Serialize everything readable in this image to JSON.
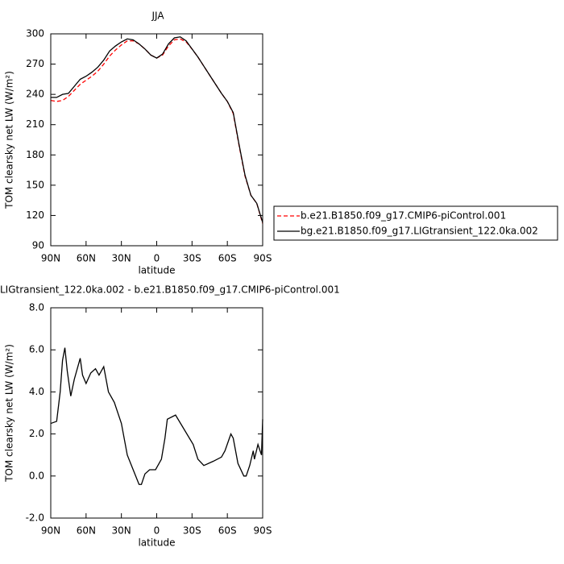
{
  "chart_data": [
    {
      "type": "line",
      "title": "JJA",
      "xlabel": "latitude",
      "ylabel": "TOM clearsky net LW (W/m²)",
      "x": [
        90,
        85,
        80,
        75,
        70,
        65,
        60,
        55,
        50,
        45,
        40,
        35,
        30,
        25,
        20,
        15,
        10,
        5,
        0,
        -5,
        -10,
        -15,
        -20,
        -25,
        -30,
        -35,
        -40,
        -45,
        -50,
        -55,
        -60,
        -65,
        -70,
        -75,
        -80,
        -85,
        -90
      ],
      "series": [
        {
          "name": "b.e21.B1850.f09_g17.CMIP6-piControl.001",
          "color": "#ff0000",
          "dashed": true,
          "values": [
            234,
            233,
            234,
            238,
            244,
            250,
            254,
            258,
            263,
            270,
            278,
            284,
            289,
            293,
            293,
            290,
            285,
            279,
            276,
            279,
            288,
            294,
            295,
            292,
            285,
            277,
            268,
            259,
            250,
            241,
            233,
            221,
            189,
            159,
            140,
            132,
            112
          ]
        },
        {
          "name": "bg.e21.B1850.f09_g17.LIGtransient_122.0ka.002",
          "color": "#000000",
          "dashed": false,
          "values": [
            237,
            237,
            240,
            241,
            248,
            255,
            258,
            262,
            267,
            274,
            283,
            288,
            292,
            295,
            294,
            290,
            285,
            279,
            276,
            280,
            290,
            296,
            297,
            293,
            285,
            277,
            268,
            259,
            250,
            241,
            233,
            222,
            190,
            160,
            140,
            132,
            113
          ]
        }
      ],
      "xlim": [
        90,
        -90
      ],
      "xticks": [
        {
          "value": 90,
          "label": "90N"
        },
        {
          "value": 60,
          "label": "60N"
        },
        {
          "value": 30,
          "label": "30N"
        },
        0,
        {
          "value": -30,
          "label": "30S"
        },
        {
          "value": -60,
          "label": "60S"
        },
        {
          "value": -90,
          "label": "90S"
        }
      ],
      "ylim": [
        90,
        300
      ],
      "yticks": [
        90,
        120,
        150,
        180,
        210,
        240,
        270,
        300
      ]
    },
    {
      "type": "line",
      "title": "LIGtransient_122.0ka.002 - b.e21.B1850.f09_g17.CMIP6-piControl.001",
      "xlabel": "latitude",
      "ylabel": "TOM clearsky net LW (W/m²)",
      "color": "#000000",
      "x": [
        90,
        85,
        82,
        80,
        78,
        76,
        73,
        70,
        65,
        63,
        60,
        56,
        52,
        49,
        45,
        41,
        36,
        30,
        25,
        20,
        15,
        13,
        10,
        6,
        1,
        -4,
        -7,
        -9,
        -16,
        -31,
        -35,
        -40,
        -48,
        -55,
        -58,
        -63,
        -65,
        -69,
        -74,
        -76,
        -79,
        -82,
        -83,
        -86,
        -89,
        -90
      ],
      "values": [
        2.5,
        2.6,
        4.0,
        5.5,
        6.1,
        5.0,
        3.8,
        4.6,
        5.6,
        4.8,
        4.4,
        4.9,
        5.1,
        4.8,
        5.2,
        4.0,
        3.5,
        2.5,
        1.0,
        0.3,
        -0.4,
        -0.4,
        0.1,
        0.3,
        0.3,
        0.8,
        1.8,
        2.7,
        2.9,
        1.5,
        0.8,
        0.5,
        0.7,
        0.9,
        1.2,
        2.0,
        1.8,
        0.6,
        0.0,
        0.0,
        0.5,
        1.2,
        0.8,
        1.5,
        1.0,
        2.7
      ],
      "xlim": [
        90,
        -90
      ],
      "xticks": [
        {
          "value": 90,
          "label": "90N"
        },
        {
          "value": 60,
          "label": "60N"
        },
        {
          "value": 30,
          "label": "30N"
        },
        0,
        {
          "value": -30,
          "label": "30S"
        },
        {
          "value": -60,
          "label": "60S"
        },
        {
          "value": -90,
          "label": "90S"
        }
      ],
      "ylim": [
        -2,
        8
      ],
      "yticks": [
        {
          "value": -2,
          "label": "-2.0"
        },
        {
          "value": 0,
          "label": "0.0"
        },
        {
          "value": 2,
          "label": "2.0"
        },
        {
          "value": 4,
          "label": "4.0"
        },
        {
          "value": 6,
          "label": "6.0"
        },
        {
          "value": 8,
          "label": "8.0"
        }
      ]
    }
  ]
}
